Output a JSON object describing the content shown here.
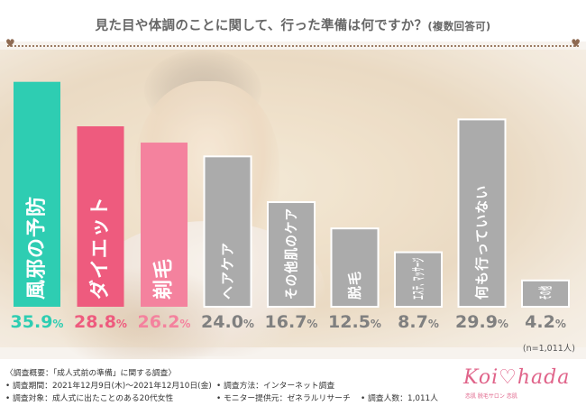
{
  "title": {
    "main": "見た目や体調のことに関して、行った準備は何ですか？",
    "sub": "(複数回答可)"
  },
  "decor": {
    "heart_char": "♥",
    "rule_color": "#9b7b63"
  },
  "chart_data": {
    "type": "bar",
    "title": "見た目や体調のことに関して、行った準備は何ですか？(複数回答可)",
    "categories": [
      "風邪の予防",
      "ダイエット",
      "剃毛",
      "ヘアケア",
      "その他肌のケア",
      "脱毛",
      "エステ、マッサージ",
      "何も行っていない",
      "その他"
    ],
    "values": [
      35.9,
      28.8,
      26.2,
      24.0,
      16.7,
      12.5,
      8.7,
      29.9,
      4.2
    ],
    "value_labels": [
      {
        "num": "35.9",
        "unit": "%"
      },
      {
        "num": "28.8",
        "unit": "%"
      },
      {
        "num": "26.2",
        "unit": "%"
      },
      {
        "num": "24.0",
        "unit": "%"
      },
      {
        "num": "16.7",
        "unit": "%"
      },
      {
        "num": "12.5",
        "unit": "%"
      },
      {
        "num": "8.7",
        "unit": "%"
      },
      {
        "num": "29.9",
        "unit": "%"
      },
      {
        "num": "4.2",
        "unit": "%"
      }
    ],
    "unit": "%",
    "ylim": [
      0,
      36
    ],
    "sample_note": "(n=1,011人)",
    "colors": {
      "fills": [
        "#2ecdb2",
        "#ee5b7e",
        "#f4829e",
        "#ababab",
        "#ababab",
        "#ababab",
        "#ababab",
        "#ababab",
        "#ababab"
      ],
      "label_colors": [
        "#2ecdb2",
        "#ee5b7e",
        "#f4829e",
        "#808080",
        "#808080",
        "#808080",
        "#808080",
        "#808080",
        "#808080"
      ],
      "bar_outline": "#ffffff"
    }
  },
  "footer": {
    "survey_title": "〈調査概要：「成人式前の準備」に関する調査〉",
    "period": "• 調査期間：2021年12月9日(木)～2021年12月10日(金)",
    "target": "• 調査対象：成人式に出たことのある20代女性",
    "method": "• 調査方法：インターネット調査",
    "provider": "• モニター提供元：ゼネラルリサーチ",
    "count": "• 調査人数：1,011人"
  },
  "logo": {
    "word": "Koi♡hada",
    "tagline": "恋肌 脱毛サロン 恋肌"
  }
}
